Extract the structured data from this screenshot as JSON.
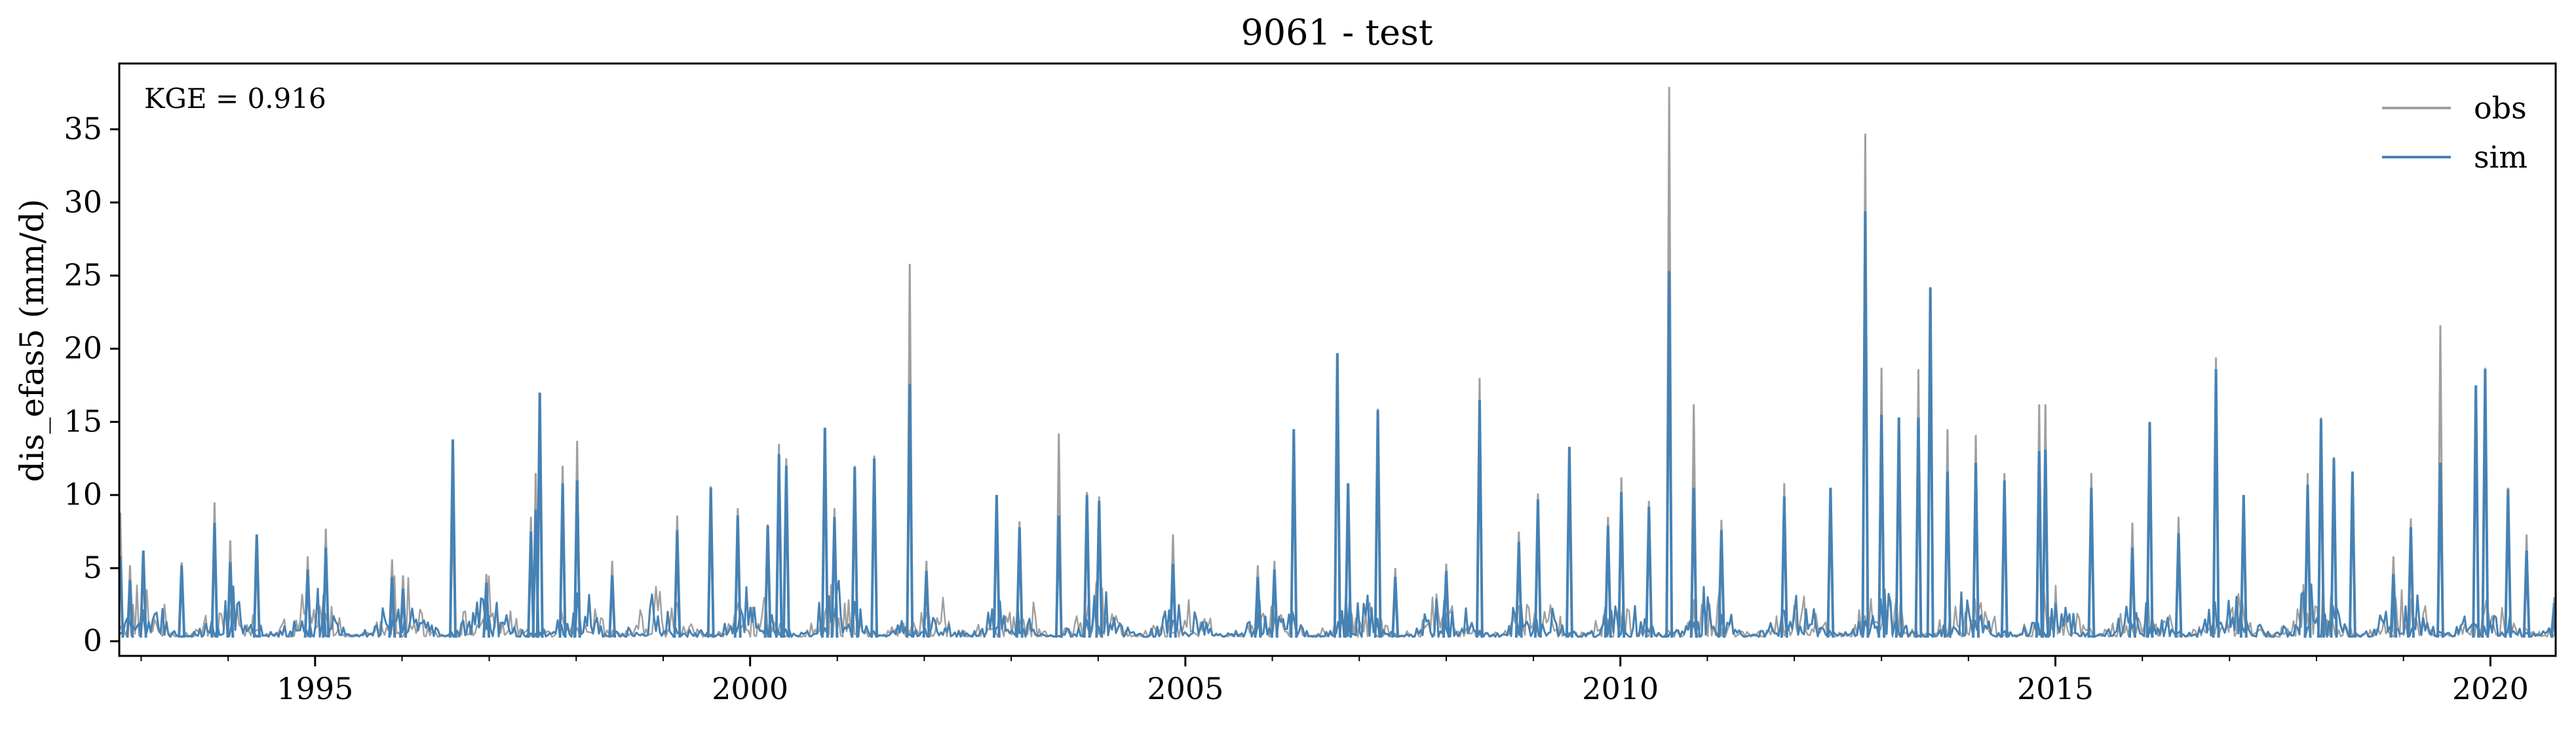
{
  "chart_data": {
    "type": "line",
    "title": "9061 - test",
    "xlabel": "",
    "ylabel": "dis_efas5 (mm/d)",
    "annotation": "KGE = 0.916",
    "x_range": [
      "1992-10-01",
      "2020-10-01"
    ],
    "ylim": [
      -1.0,
      39.5
    ],
    "x_ticks": [
      "1995",
      "2000",
      "2005",
      "2010",
      "2015",
      "2020"
    ],
    "y_ticks": [
      "0",
      "5",
      "10",
      "15",
      "20",
      "25",
      "30",
      "35"
    ],
    "y_tick_values": [
      0,
      5,
      10,
      15,
      20,
      25,
      30,
      35
    ],
    "grid": false,
    "legend": "top-right",
    "series": [
      {
        "name": "obs",
        "color": "#a0a0a0",
        "x": [
          "1992-10-05",
          "1992-11-15",
          "1993-01-10",
          "1993-06-20",
          "1993-11-05",
          "1994-01-10",
          "1994-05-01",
          "1994-12-01",
          "1995-02-15",
          "1995-11-20",
          "1996-01-05",
          "1996-08-01",
          "1996-12-20",
          "1997-06-25",
          "1997-07-15",
          "1997-08-01",
          "1997-11-05",
          "1998-01-05",
          "1998-06-01",
          "1999-03-01",
          "1999-07-20",
          "1999-11-10",
          "2000-03-15",
          "2000-05-01",
          "2000-06-01",
          "2000-11-10",
          "2000-12-20",
          "2001-03-15",
          "2001-06-05",
          "2001-11-01",
          "2002-01-10",
          "2002-11-01",
          "2003-02-05",
          "2003-07-20",
          "2003-11-15",
          "2004-01-05",
          "2004-11-10",
          "2005-11-01",
          "2006-01-10",
          "2006-04-01",
          "2006-10-01",
          "2006-11-15",
          "2007-03-20",
          "2007-06-01",
          "2008-01-01",
          "2008-05-20",
          "2008-11-01",
          "2009-01-20",
          "2009-06-01",
          "2009-11-10",
          "2010-01-05",
          "2010-05-01",
          "2010-07-25",
          "2010-11-05",
          "2011-03-01",
          "2011-11-20",
          "2012-06-01",
          "2012-10-25",
          "2013-01-01",
          "2013-03-15",
          "2013-06-05",
          "2013-07-25",
          "2013-10-05",
          "2014-02-01",
          "2014-06-01",
          "2014-10-25",
          "2014-11-20",
          "2015-06-01",
          "2015-11-20",
          "2016-02-01",
          "2016-06-01",
          "2016-11-05",
          "2017-03-01",
          "2017-11-25",
          "2018-01-20",
          "2018-03-15",
          "2018-06-01",
          "2018-11-20",
          "2019-02-01",
          "2019-06-05",
          "2019-11-01",
          "2019-12-10",
          "2020-03-15",
          "2020-06-01",
          "2020-09-25"
        ],
        "y": [
          8.8,
          5.2,
          6.1,
          5.4,
          9.5,
          6.9,
          7.2,
          5.8,
          7.7,
          5.6,
          4.5,
          8.7,
          4.6,
          8.5,
          11.5,
          16.8,
          12.0,
          13.7,
          5.5,
          8.6,
          10.6,
          9.1,
          8.0,
          13.5,
          12.5,
          13.1,
          9.1,
          12.0,
          12.7,
          25.8,
          5.5,
          10.0,
          8.2,
          14.2,
          10.2,
          9.9,
          7.3,
          5.2,
          5.5,
          14.5,
          19.2,
          10.5,
          15.9,
          5.0,
          5.3,
          18.0,
          7.5,
          10.1,
          13.3,
          8.5,
          11.2,
          9.6,
          37.9,
          16.2,
          8.3,
          10.8,
          10.5,
          34.7,
          18.7,
          15.3,
          18.6,
          21.0,
          14.5,
          14.1,
          11.5,
          16.2,
          16.2,
          11.5,
          8.1,
          15.0,
          8.5,
          19.4,
          9.6,
          11.5,
          15.3,
          12.6,
          11.6,
          5.8,
          8.4,
          21.6,
          17.0,
          18.7,
          10.5,
          7.3,
          3.0
        ]
      },
      {
        "name": "sim",
        "color": "#4682b4",
        "x": [
          "1992-10-05",
          "1992-11-15",
          "1993-01-10",
          "1993-06-20",
          "1993-11-05",
          "1994-01-10",
          "1994-05-01",
          "1994-12-01",
          "1995-02-15",
          "1995-11-20",
          "1996-01-05",
          "1996-08-01",
          "1996-12-20",
          "1997-06-25",
          "1997-07-15",
          "1997-08-01",
          "1997-11-05",
          "1998-01-05",
          "1998-06-01",
          "1999-03-01",
          "1999-07-20",
          "1999-11-10",
          "2000-03-15",
          "2000-05-01",
          "2000-06-01",
          "2000-11-10",
          "2000-12-20",
          "2001-03-15",
          "2001-06-05",
          "2001-11-01",
          "2002-01-10",
          "2002-11-01",
          "2003-02-05",
          "2003-07-20",
          "2003-11-15",
          "2004-01-05",
          "2004-11-10",
          "2005-11-01",
          "2006-01-10",
          "2006-04-01",
          "2006-10-01",
          "2006-11-15",
          "2007-03-20",
          "2007-06-01",
          "2008-01-01",
          "2008-05-20",
          "2008-11-01",
          "2009-01-20",
          "2009-06-01",
          "2009-11-10",
          "2010-01-05",
          "2010-05-01",
          "2010-07-25",
          "2010-11-05",
          "2011-03-01",
          "2011-11-20",
          "2012-06-01",
          "2012-10-25",
          "2013-01-01",
          "2013-03-15",
          "2013-06-05",
          "2013-07-25",
          "2013-10-05",
          "2014-02-01",
          "2014-06-01",
          "2014-10-25",
          "2014-11-20",
          "2015-06-01",
          "2015-11-20",
          "2016-02-01",
          "2016-06-01",
          "2016-11-05",
          "2017-03-01",
          "2017-11-25",
          "2018-01-20",
          "2018-03-15",
          "2018-06-01",
          "2018-11-20",
          "2019-02-01",
          "2019-06-05",
          "2019-11-01",
          "2019-12-10",
          "2020-03-15",
          "2020-06-01",
          "2020-09-25"
        ],
        "y": [
          5.8,
          4.2,
          6.2,
          5.2,
          8.1,
          5.4,
          7.3,
          4.9,
          6.4,
          4.4,
          3.6,
          13.8,
          4.0,
          7.5,
          9.0,
          17.0,
          10.8,
          11.0,
          4.5,
          7.6,
          10.5,
          8.6,
          7.9,
          12.8,
          12.0,
          14.6,
          8.5,
          11.9,
          12.5,
          17.6,
          4.8,
          10.0,
          7.8,
          8.6,
          10.0,
          9.6,
          5.3,
          4.4,
          4.9,
          14.5,
          19.7,
          10.8,
          15.8,
          4.4,
          4.8,
          16.5,
          6.8,
          9.7,
          13.3,
          7.9,
          10.2,
          9.2,
          25.3,
          10.5,
          7.6,
          9.9,
          10.5,
          29.4,
          15.5,
          15.3,
          15.3,
          24.2,
          11.6,
          12.2,
          11.0,
          13.0,
          13.1,
          10.5,
          6.4,
          15.0,
          7.4,
          18.6,
          10.0,
          10.7,
          15.2,
          12.5,
          11.6,
          4.6,
          7.8,
          12.2,
          17.5,
          18.6,
          10.4,
          6.2,
          2.6
        ]
      }
    ]
  }
}
